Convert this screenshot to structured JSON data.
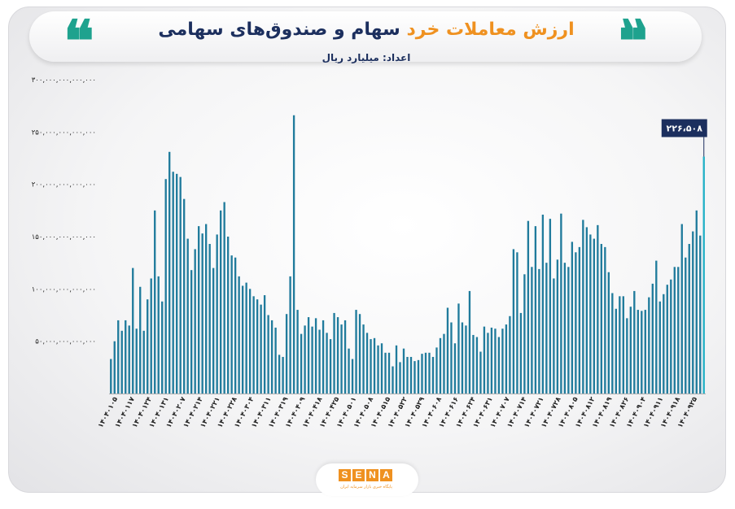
{
  "header": {
    "title_accent": "ارزش معاملات خرد",
    "title_main": "سهام و صندوق‌های سهامی",
    "unit_label": "اعداد: میلیارد ریال"
  },
  "logo": {
    "letters": [
      "S",
      "E",
      "N",
      "A"
    ],
    "tagline": "پایگاه خبری بازار سرمایه ایران"
  },
  "chart_data": {
    "type": "bar",
    "title": "ارزش معاملات خرد سهام و صندوق‌های سهامی",
    "ylabel": "اعداد: میلیارد ریال",
    "ylim": [
      0,
      300000000000000
    ],
    "yticks": [
      0,
      50000000000000,
      100000000000000,
      150000000000000,
      200000000000000,
      250000000000000,
      300000000000000
    ],
    "ytick_labels": [
      "",
      "۵۰,۰۰۰,۰۰۰,۰۰۰,۰۰۰",
      "۱۰۰,۰۰۰,۰۰۰,۰۰۰,۰۰۰",
      "۱۵۰,۰۰۰,۰۰۰,۰۰۰,۰۰۰",
      "۲۰۰,۰۰۰,۰۰۰,۰۰۰,۰۰۰",
      "۲۵۰,۰۰۰,۰۰۰,۰۰۰,۰۰۰",
      "۳۰۰,۰۰۰,۰۰۰,۰۰۰,۰۰۰"
    ],
    "xtick_labels": [
      "۱۴۰۴۰۱۰۵",
      "۱۴۰۴۰۱۱۷",
      "۱۴۰۴۰۱۲۴",
      "۱۴۰۴۰۱۳۱",
      "۱۴۰۴۰۲۰۷",
      "۱۴۰۴۰۲۱۴",
      "۱۴۰۴۰۲۲۱",
      "۱۴۰۴۰۲۲۸",
      "۱۴۰۴۰۳۰۴",
      "۱۴۰۴۰۳۱۱",
      "۱۴۰۴۰۳۱۹",
      "۱۴۰۴۰۴۰۹",
      "۱۴۰۴۰۴۱۸",
      "۱۴۰۴۰۴۲۵",
      "۱۴۰۴۰۵۰۱",
      "۱۴۰۴۰۵۰۸",
      "۱۴۰۴۰۵۱۵",
      "۱۴۰۴۰۵۲۲",
      "۱۴۰۴۰۵۲۹",
      "۱۴۰۴۰۶۰۸",
      "۱۴۰۴۰۶۱۶",
      "۱۴۰۴۰۶۲۴",
      "۱۴۰۴۰۶۳۱",
      "۱۴۰۴۰۷۰۷",
      "۱۴۰۴۰۷۱۴",
      "۱۴۰۴۰۷۲۱",
      "۱۴۰۴۰۷۲۸",
      "۱۴۰۴۰۸۰۵",
      "۱۴۰۴۰۸۱۲",
      "۱۴۰۴۰۸۱۹",
      "۱۴۰۴۰۸۲۶",
      "۱۴۰۴۰۹۰۴",
      "۱۴۰۴۰۹۱۱",
      "۱۴۰۴۰۹۱۸",
      "۱۴۰۴۰۹۲۵"
    ],
    "values": [
      33,
      50,
      70,
      60,
      70,
      65,
      120,
      62,
      102,
      60,
      90,
      110,
      175,
      112,
      88,
      205,
      231,
      212,
      210,
      207,
      186,
      148,
      118,
      138,
      160,
      153,
      162,
      143,
      120,
      152,
      175,
      183,
      150,
      132,
      130,
      112,
      103,
      106,
      100,
      93,
      90,
      85,
      94,
      75,
      70,
      63,
      37,
      35,
      76,
      112,
      266,
      80,
      57,
      65,
      73,
      64,
      72,
      61,
      70,
      58,
      52,
      77,
      73,
      66,
      70,
      43,
      33,
      80,
      76,
      66,
      58,
      52,
      53,
      46,
      48,
      39,
      39,
      26,
      46,
      30,
      43,
      35,
      35,
      31,
      32,
      38,
      39,
      39,
      35,
      44,
      53,
      57,
      82,
      68,
      48,
      86,
      68,
      65,
      98,
      56,
      54,
      40,
      64,
      58,
      63,
      62,
      54,
      62,
      66,
      74,
      138,
      135,
      77,
      114,
      165,
      121,
      160,
      119,
      171,
      125,
      167,
      110,
      128,
      172,
      125,
      121,
      145,
      135,
      140,
      166,
      159,
      152,
      148,
      161,
      143,
      140,
      116,
      96,
      81,
      93,
      93,
      72,
      83,
      98,
      80,
      79,
      80,
      92,
      105,
      127,
      88,
      95,
      104,
      109,
      121,
      121,
      162,
      130,
      143,
      155,
      175,
      151,
      226.508
    ],
    "last_value_label": "۲۲۶،۵۰۸",
    "colors": {
      "bar": "#207b9c",
      "highlight": "#23b1c7",
      "callout": "#1c2f5e"
    },
    "grid": false
  }
}
